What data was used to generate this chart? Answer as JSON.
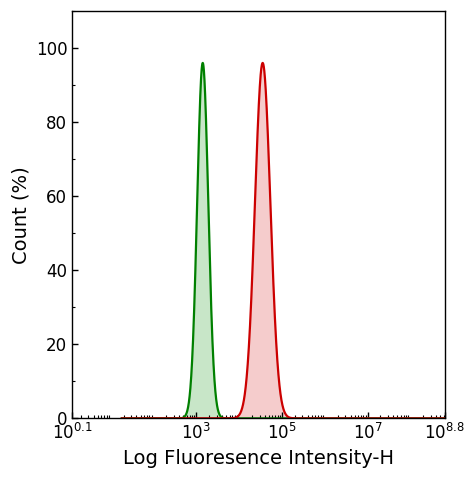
{
  "title": "",
  "xlabel": "Log Fluoresence Intensity-H",
  "ylabel": "Count (%)",
  "xlim": [
    1.26,
    8.8
  ],
  "ylim": [
    0,
    110
  ],
  "yticks": [
    0,
    20,
    40,
    60,
    80,
    100
  ],
  "xtick_positions_log10": [
    0.1,
    3,
    5,
    7,
    8.8
  ],
  "xtick_labels": [
    "10$^{0.1}$",
    "10$^{3}$",
    "10$^{5}$",
    "10$^{7}$",
    "10$^{8.8}$"
  ],
  "green_peak_log10": 3.15,
  "green_sigma_log10": 0.13,
  "green_height": 96,
  "red_peak_log10": 4.55,
  "red_sigma_log10": 0.18,
  "red_height": 96,
  "green_color": "#008000",
  "green_fill": "#c8e6c8",
  "red_color": "#cc0000",
  "red_fill": "#f5cccc",
  "background_color": "#ffffff",
  "linewidth": 1.6,
  "tick_label_fontsize": 12,
  "axis_label_fontsize": 14
}
